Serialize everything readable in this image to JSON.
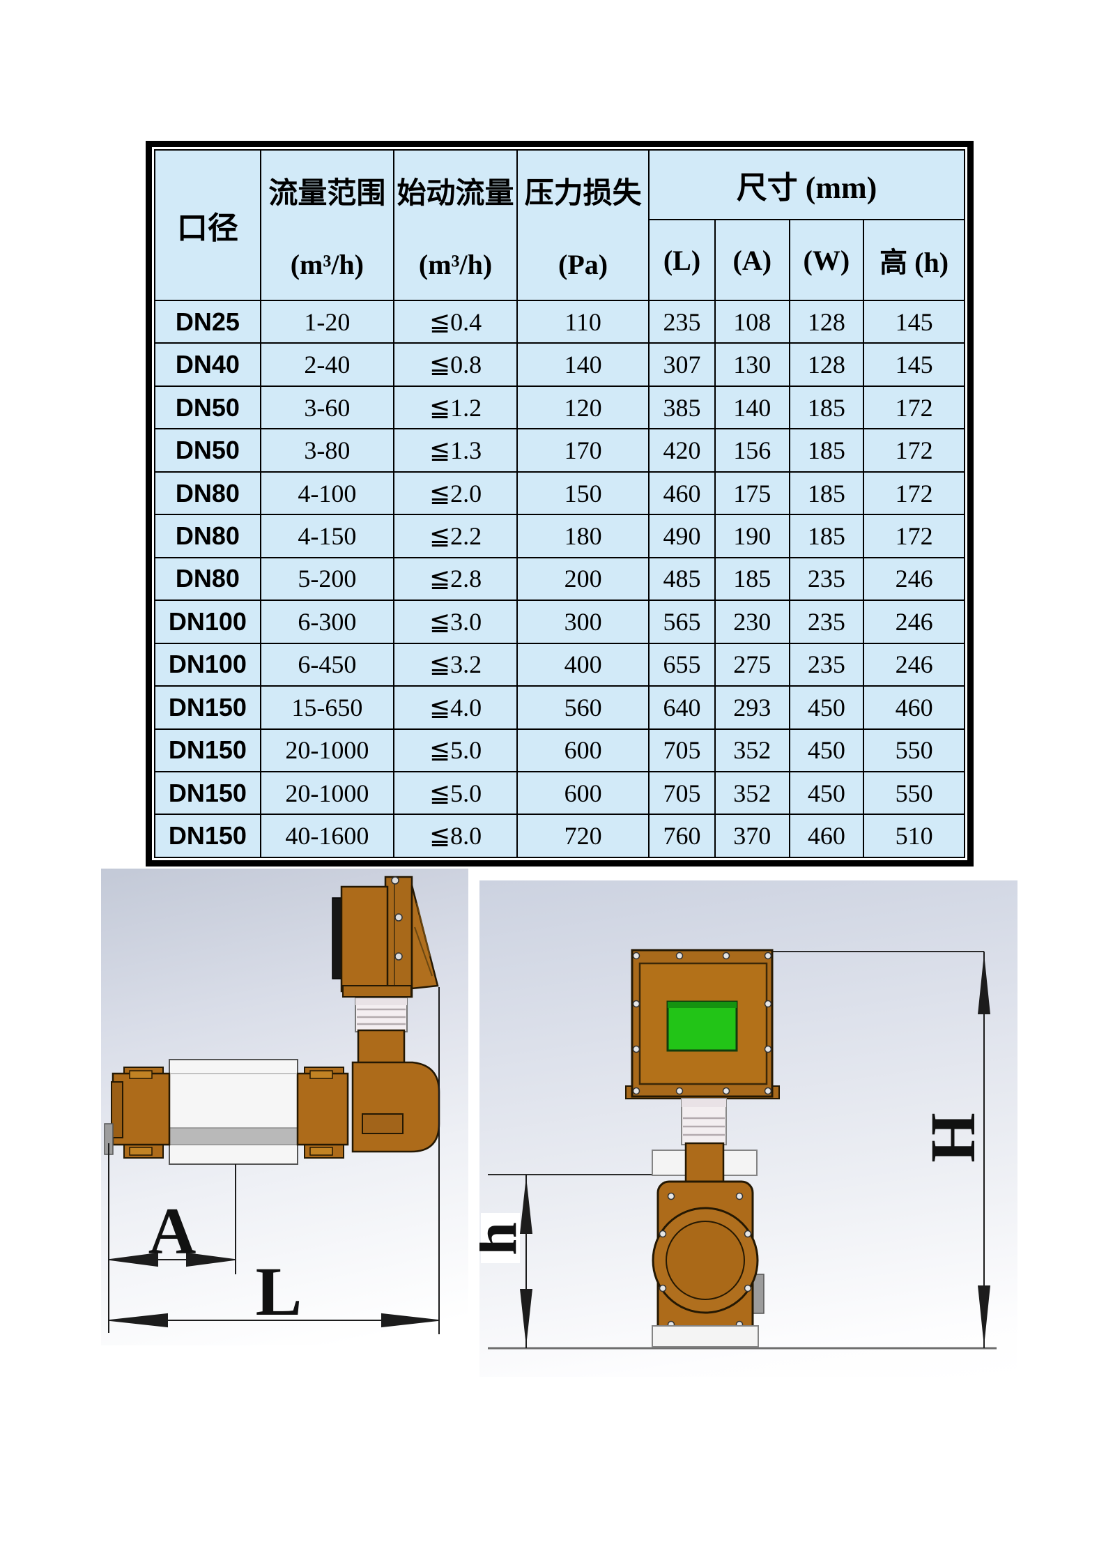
{
  "table": {
    "header": {
      "diameter": "口径",
      "flow_range": [
        "流量范围",
        "(m³/h)"
      ],
      "start_flow": [
        "始动流量",
        "(m³/h)"
      ],
      "pressure_loss": [
        "压力损失",
        "(Pa)"
      ],
      "dimensions": "尺寸 (mm)",
      "dim_sub": [
        "(L)",
        "(A)",
        "(W)",
        "高 (h)"
      ]
    },
    "rows": [
      [
        "DN25",
        "1-20",
        "≦0.4",
        "110",
        "235",
        "108",
        "128",
        "145"
      ],
      [
        "DN40",
        "2-40",
        "≦0.8",
        "140",
        "307",
        "130",
        "128",
        "145"
      ],
      [
        "DN50",
        "3-60",
        "≦1.2",
        "120",
        "385",
        "140",
        "185",
        "172"
      ],
      [
        "DN50",
        "3-80",
        "≦1.3",
        "170",
        "420",
        "156",
        "185",
        "172"
      ],
      [
        "DN80",
        "4-100",
        "≦2.0",
        "150",
        "460",
        "175",
        "185",
        "172"
      ],
      [
        "DN80",
        "4-150",
        "≦2.2",
        "180",
        "490",
        "190",
        "185",
        "172"
      ],
      [
        "DN80",
        "5-200",
        "≦2.8",
        "200",
        "485",
        "185",
        "235",
        "246"
      ],
      [
        "DN100",
        "6-300",
        "≦3.0",
        "300",
        "565",
        "230",
        "235",
        "246"
      ],
      [
        "DN100",
        "6-450",
        "≦3.2",
        "400",
        "655",
        "275",
        "235",
        "246"
      ],
      [
        "DN150",
        "15-650",
        "≦4.0",
        "560",
        "640",
        "293",
        "450",
        "460"
      ],
      [
        "DN150",
        "20-1000",
        "≦5.0",
        "600",
        "705",
        "352",
        "450",
        "550"
      ],
      [
        "DN150",
        "20-1000",
        "≦5.0",
        "600",
        "705",
        "352",
        "450",
        "550"
      ],
      [
        "DN150",
        "40-1600",
        "≦8.0",
        "720",
        "760",
        "370",
        "460",
        "510"
      ]
    ],
    "colors": {
      "cell_background": "#d2eaf8",
      "grid": "#000000"
    }
  },
  "drawings": {
    "side_view": {
      "dim_a_label": "A",
      "dim_l_label": "L"
    },
    "front_view": {
      "dim_h_label": "h",
      "dim_height_label": "H"
    },
    "colors": {
      "housing_brown": "#ad6b1a",
      "screen_green": "#22c417",
      "body_white": "#f6f6f6"
    }
  }
}
